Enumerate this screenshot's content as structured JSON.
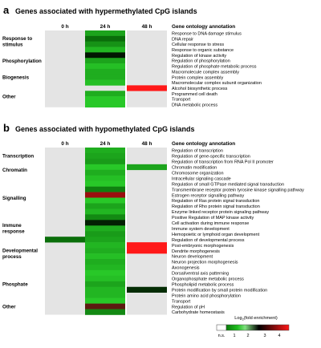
{
  "chart_data": [
    {
      "type": "heatmap",
      "panel_letter": "a",
      "title": "Genes associated with hypermethylated CpG  islands",
      "columns": [
        "0 h",
        "24 h",
        "48 h"
      ],
      "annotation_header": "Gene ontology annotation",
      "groups": [
        {
          "label": [
            "Response to",
            "stimulus"
          ],
          "first_row": 0,
          "last_row": 3
        },
        {
          "label": [
            "Phosphorylation"
          ],
          "first_row": 4,
          "last_row": 6
        },
        {
          "label": [
            "Biogenesis"
          ],
          "first_row": 7,
          "last_row": 9
        },
        {
          "label": [
            "Other"
          ],
          "first_row": 10,
          "last_row": 13
        }
      ],
      "rows": [
        {
          "label": "Response to DNA damage stimulus",
          "values": [
            null,
            1.6,
            null
          ]
        },
        {
          "label": "DNA repair",
          "values": [
            null,
            1.0,
            null
          ]
        },
        {
          "label": "Cellular response to stress",
          "values": [
            null,
            1.4,
            null
          ]
        },
        {
          "label": "Response to organic substance",
          "values": [
            null,
            1.8,
            null
          ]
        },
        {
          "label": "Regulation of kinase activity",
          "values": [
            null,
            0.2,
            null
          ]
        },
        {
          "label": "Regulation of phosphorylation",
          "values": [
            null,
            1.6,
            null
          ]
        },
        {
          "label": "Regulation of phosphate metabolic process",
          "values": [
            null,
            1.9,
            null
          ]
        },
        {
          "label": "Macromolecule complex assembly",
          "values": [
            null,
            1.7,
            null
          ]
        },
        {
          "label": "Protein complex assembly",
          "values": [
            null,
            1.7,
            null
          ]
        },
        {
          "label": "Macromolecular complex subunit organization",
          "values": [
            null,
            1.9,
            null
          ]
        },
        {
          "label": "Alcohol biosynthetic process",
          "values": [
            null,
            null,
            3.8
          ]
        },
        {
          "label": "Programmed cell death",
          "values": [
            null,
            1.7,
            null
          ]
        },
        {
          "label": "Transport",
          "values": [
            null,
            2.1,
            null
          ]
        },
        {
          "label": "DNA metabolic process",
          "values": [
            null,
            2.3,
            null
          ]
        }
      ]
    },
    {
      "type": "heatmap",
      "panel_letter": "b",
      "title": "Genes associated with hypomethylated CpG  islands",
      "columns": [
        "0 h",
        "24 h",
        "48 h"
      ],
      "annotation_header": "Gene ontology annotation",
      "groups": [
        {
          "label": [
            "Transcription"
          ],
          "first_row": 0,
          "last_row": 2
        },
        {
          "label": [
            "Chromatin"
          ],
          "first_row": 3,
          "last_row": 4
        },
        {
          "label": [
            "Signalling"
          ],
          "first_row": 5,
          "last_row": 12
        },
        {
          "label": [
            "Immune",
            "response"
          ],
          "first_row": 13,
          "last_row": 15
        },
        {
          "label": [
            "Developmental",
            "process"
          ],
          "first_row": 16,
          "last_row": 21
        },
        {
          "label": [
            "Phosphate"
          ],
          "first_row": 22,
          "last_row": 26
        },
        {
          "label": [
            "Other"
          ],
          "first_row": 27,
          "last_row": 29
        }
      ],
      "rows": [
        {
          "label": "Regulation of transcription",
          "values": [
            null,
            1.7,
            null
          ]
        },
        {
          "label": "Regulation of gene-specific transcription",
          "values": [
            null,
            1.6,
            null
          ]
        },
        {
          "label": "Regulation of transcription from RNA Pol II promoter",
          "values": [
            null,
            1.5,
            null
          ]
        },
        {
          "label": "Chromatin modification",
          "values": [
            null,
            2.0,
            1.6
          ]
        },
        {
          "label": "Chromosome organization",
          "values": [
            null,
            1.7,
            null
          ]
        },
        {
          "label": "Intracellular signaling cascade",
          "values": [
            null,
            1.9,
            null
          ]
        },
        {
          "label": "Regulation of small GTPase mediated signal transduction",
          "values": [
            null,
            2.3,
            null
          ]
        },
        {
          "label": "Transmembrane receptor protein tyrosine kinase signalling pathway",
          "values": [
            null,
            1.2,
            null
          ]
        },
        {
          "label": "Estrogen receptor signalling pathway",
          "values": [
            null,
            3.2,
            null
          ]
        },
        {
          "label": "Regulation of Ras protein signal transduction",
          "values": [
            null,
            2.4,
            null
          ]
        },
        {
          "label": "Regulation of Rho protein signal transduction",
          "values": [
            null,
            1.6,
            null
          ]
        },
        {
          "label": "Enzyme linked receptor protein signaling pathway",
          "values": [
            null,
            1.8,
            null
          ]
        },
        {
          "label": "Positive Regulation of MAP kinase activity",
          "values": [
            null,
            1.3,
            null
          ]
        },
        {
          "label": "Cell activation during immune response",
          "values": [
            null,
            0.3,
            null
          ]
        },
        {
          "label": "Immune system development",
          "values": [
            null,
            1.7,
            null
          ]
        },
        {
          "label": "Hemopoietic or lymphoid organ development",
          "values": [
            null,
            1.5,
            null
          ]
        },
        {
          "label": "Regulation of developmental process",
          "values": [
            1.0,
            1.6,
            null
          ]
        },
        {
          "label": "Post-embryonic morphogenesis",
          "values": [
            null,
            1.8,
            3.8
          ]
        },
        {
          "label": "Dendrite morphogenesis",
          "values": [
            null,
            1.7,
            3.8
          ]
        },
        {
          "label": "Neuron development",
          "values": [
            null,
            1.9,
            null
          ]
        },
        {
          "label": "Neuron projection morphogenesis",
          "values": [
            null,
            1.7,
            null
          ]
        },
        {
          "label": "Axonogenesis",
          "values": [
            null,
            1.8,
            null
          ]
        },
        {
          "label": "Dorsal/ventral axis patterning",
          "values": [
            null,
            2.0,
            null
          ]
        },
        {
          "label": "Organophosphate metabolic process",
          "values": [
            null,
            1.9,
            null
          ]
        },
        {
          "label": "Phospholipid metabolic process",
          "values": [
            null,
            1.6,
            null
          ]
        },
        {
          "label": "Protein modification by small protein modification",
          "values": [
            null,
            1.8,
            0.4
          ]
        },
        {
          "label": "Protein amino acid phosphorylation",
          "values": [
            null,
            1.8,
            null
          ]
        },
        {
          "label": "Transport",
          "values": [
            null,
            2.5,
            null
          ]
        },
        {
          "label": "Regulation of pH",
          "values": [
            null,
            2.9,
            null
          ]
        },
        {
          "label": "Carbohydrate homeostasis",
          "values": [
            null,
            1.3,
            null
          ]
        }
      ]
    }
  ],
  "legend": {
    "title": "Log",
    "title_sub": "2",
    "title_rest": "(fold enrichment)",
    "ticks": [
      "n.s.",
      "1",
      "2",
      "3",
      "4"
    ],
    "colors": {
      "ns": "#ffffff",
      "stops": [
        "#000000",
        "#0a7a0a",
        "#26c226",
        "#6cd96c",
        "#000000",
        "#7a0b0b",
        "#ff1818"
      ]
    }
  },
  "colors": {
    "grey_background": "#e4e4e4",
    "no_data": "#e4e4e4"
  }
}
